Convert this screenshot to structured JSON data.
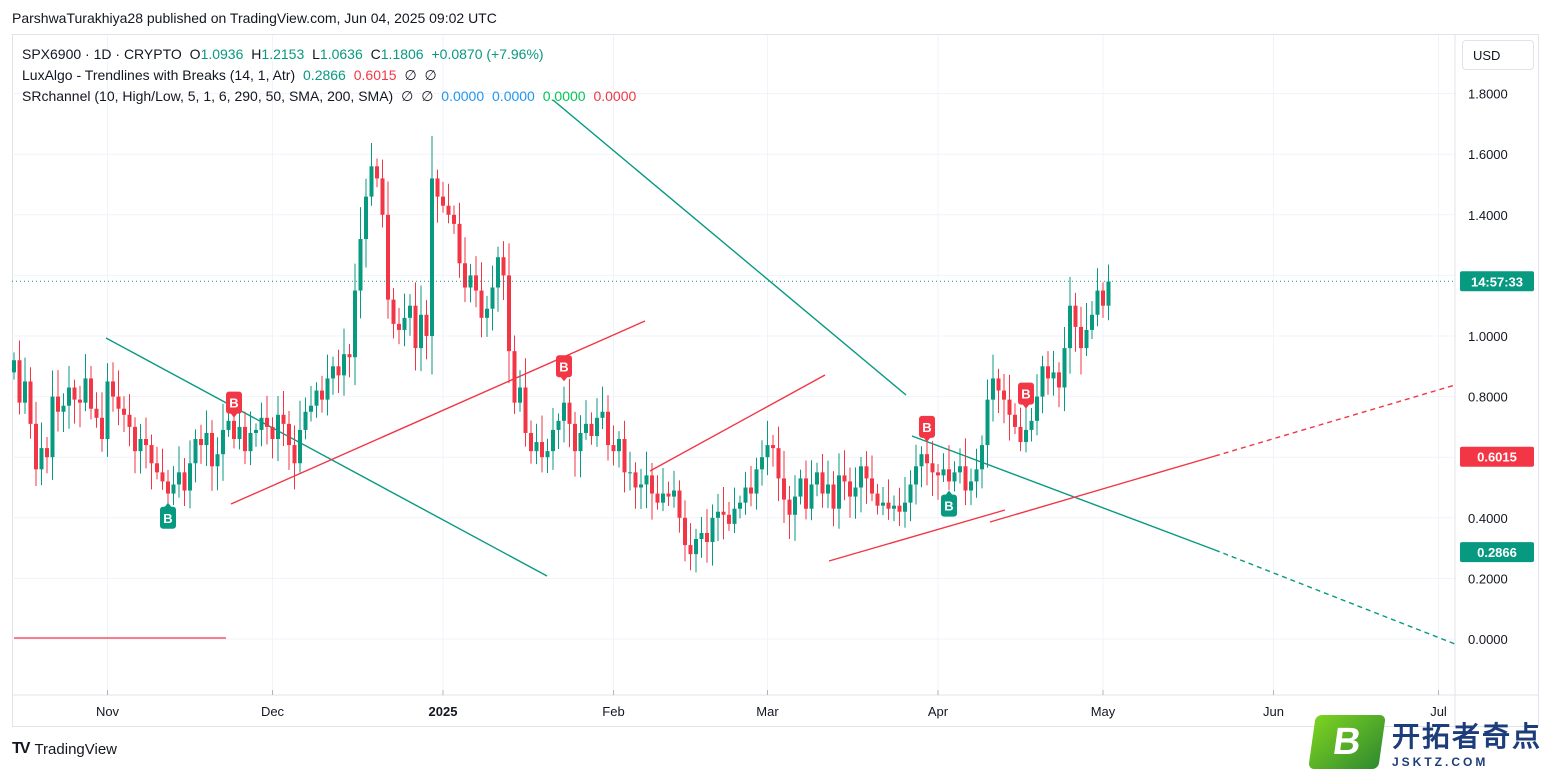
{
  "header": "ParshwaTurakhiya28 published on TradingView.com, Jun 04, 2025 09:02 UTC",
  "legend": {
    "symbol": "SPX6900 · 1D · CRYPTO",
    "o_label": "O",
    "o": "1.0936",
    "h_label": "H",
    "h": "1.2153",
    "l_label": "L",
    "l": "1.0636",
    "c_label": "C",
    "c": "1.1806",
    "change": "+0.0870 (+7.96%)",
    "ind1_name": "LuxAlgo - Trendlines with Breaks (14, 1, Atr)",
    "ind1_v1": "0.2866",
    "ind1_v2": "0.6015",
    "ind1_na1": "∅",
    "ind1_na2": "∅",
    "ind2_name": "SRchannel (10, High/Low, 5, 1, 6, 290, 50, SMA, 200, SMA)",
    "ind2_na1": "∅",
    "ind2_na2": "∅",
    "ind2_v1": "0.0000",
    "ind2_v2": "0.0000",
    "ind2_v3": "0.0000",
    "ind2_v4": "0.0000"
  },
  "currency": "USD",
  "branding": "TradingView",
  "watermark": {
    "mark": "B",
    "text": "开拓者奇点",
    "url": "JSKTZ.COM"
  },
  "colors": {
    "up": "#089981",
    "down": "#f23645",
    "teal": "#089981",
    "red": "#f23645"
  },
  "chart_data": {
    "type": "candlestick",
    "y_ticks": [
      "1.8000",
      "1.6000",
      "1.4000",
      "1.2000",
      "1.0000",
      "0.8000",
      "0.6000",
      "0.4000",
      "0.2000",
      "0.0000"
    ],
    "x_ticks": [
      {
        "label": "Nov",
        "idx": 17
      },
      {
        "label": "Dec",
        "idx": 47
      },
      {
        "label": "2025",
        "idx": 78,
        "bold": true
      },
      {
        "label": "Feb",
        "idx": 109
      },
      {
        "label": "Mar",
        "idx": 137
      },
      {
        "label": "Apr",
        "idx": 168
      },
      {
        "label": "May",
        "idx": 198
      },
      {
        "label": "Jun",
        "idx": 229
      },
      {
        "label": "Jul",
        "idx": 259
      }
    ],
    "price_labels": [
      {
        "text": "14:57:33",
        "value": 1.1806,
        "color": "#089981"
      },
      {
        "text": "0.6015",
        "value": 0.6015,
        "color": "#f23645"
      },
      {
        "text": "0.2866",
        "value": 0.2866,
        "color": "#089981"
      }
    ],
    "last_price": 1.1806,
    "closes": [
      0.92,
      0.78,
      0.85,
      0.71,
      0.56,
      0.63,
      0.6,
      0.8,
      0.75,
      0.77,
      0.83,
      0.79,
      0.78,
      0.86,
      0.76,
      0.73,
      0.66,
      0.85,
      0.8,
      0.76,
      0.74,
      0.7,
      0.62,
      0.66,
      0.64,
      0.58,
      0.55,
      0.52,
      0.48,
      0.51,
      0.55,
      0.49,
      0.58,
      0.66,
      0.64,
      0.68,
      0.57,
      0.61,
      0.69,
      0.72,
      0.66,
      0.7,
      0.62,
      0.68,
      0.69,
      0.73,
      0.7,
      0.66,
      0.74,
      0.71,
      0.64,
      0.58,
      0.69,
      0.75,
      0.77,
      0.82,
      0.79,
      0.86,
      0.9,
      0.87,
      0.94,
      0.93,
      1.15,
      1.32,
      1.46,
      1.56,
      1.52,
      1.4,
      1.12,
      1.04,
      1.02,
      1.06,
      1.1,
      0.96,
      1.07,
      1.0,
      1.52,
      1.46,
      1.43,
      1.4,
      1.37,
      1.24,
      1.16,
      1.2,
      1.15,
      1.06,
      1.09,
      1.16,
      1.26,
      1.2,
      0.95,
      0.78,
      0.83,
      0.68,
      0.62,
      0.65,
      0.6,
      0.62,
      0.69,
      0.72,
      0.78,
      0.71,
      0.62,
      0.68,
      0.71,
      0.67,
      0.73,
      0.75,
      0.64,
      0.62,
      0.66,
      0.55,
      0.55,
      0.5,
      0.51,
      0.54,
      0.48,
      0.45,
      0.48,
      0.47,
      0.49,
      0.4,
      0.31,
      0.28,
      0.33,
      0.35,
      0.32,
      0.4,
      0.42,
      0.41,
      0.38,
      0.43,
      0.45,
      0.5,
      0.48,
      0.56,
      0.6,
      0.64,
      0.63,
      0.53,
      0.46,
      0.41,
      0.47,
      0.53,
      0.43,
      0.51,
      0.55,
      0.48,
      0.51,
      0.43,
      0.54,
      0.52,
      0.47,
      0.5,
      0.57,
      0.53,
      0.48,
      0.44,
      0.45,
      0.43,
      0.44,
      0.42,
      0.45,
      0.51,
      0.57,
      0.61,
      0.58,
      0.55,
      0.54,
      0.56,
      0.52,
      0.55,
      0.57,
      0.49,
      0.52,
      0.56,
      0.64,
      0.79,
      0.86,
      0.82,
      0.79,
      0.74,
      0.7,
      0.65,
      0.69,
      0.72,
      0.8,
      0.9,
      0.86,
      0.88,
      0.83,
      0.96,
      1.1,
      1.03,
      0.96,
      1.02,
      1.07,
      1.15,
      1.1,
      1.18
    ]
  },
  "signals": [
    {
      "label": "B",
      "idx": 40,
      "color": "#f23645",
      "dir": "up"
    },
    {
      "label": "B",
      "idx": 100,
      "color": "#f23645",
      "dir": "up"
    },
    {
      "label": "B",
      "idx": 166,
      "color": "#f23645",
      "dir": "up"
    },
    {
      "label": "B",
      "idx": 184,
      "color": "#f23645",
      "dir": "up"
    },
    {
      "label": "B",
      "idx": 28,
      "color": "#089981",
      "dir": "down"
    },
    {
      "label": "B",
      "idx": 170,
      "color": "#089981",
      "dir": "down"
    }
  ]
}
